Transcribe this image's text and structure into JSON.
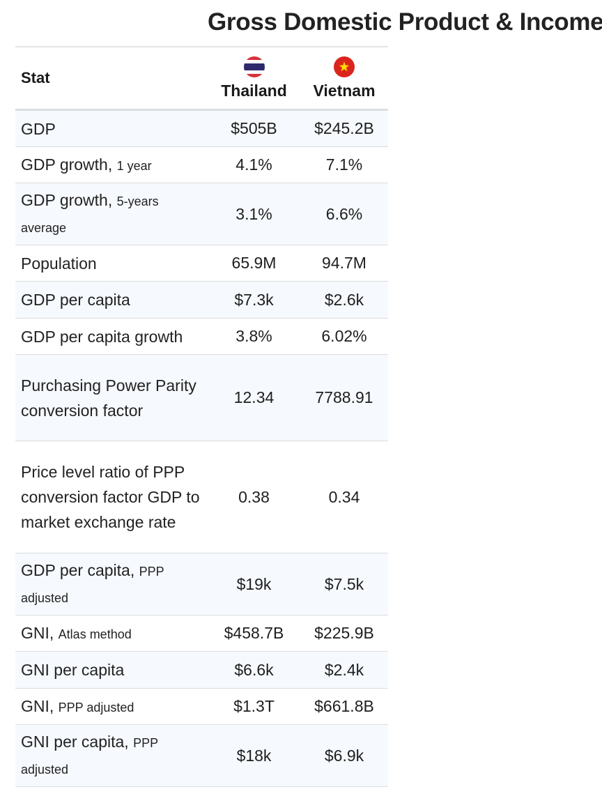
{
  "title": "Gross Domestic Product & Income",
  "table": {
    "header": {
      "stat_label": "Stat",
      "countries": [
        {
          "name": "Thailand",
          "flag_icon": "thailand-flag-icon"
        },
        {
          "name": "Vietnam",
          "flag_icon": "vietnam-flag-icon"
        }
      ]
    },
    "rows": [
      {
        "label": "GDP",
        "sub": "",
        "thailand": "$505B",
        "vietnam": "$245.2B"
      },
      {
        "label": "GDP growth,",
        "sub": "1 year",
        "thailand": "4.1%",
        "vietnam": "7.1%"
      },
      {
        "label": "GDP growth,",
        "sub": "5-years average",
        "thailand": "3.1%",
        "vietnam": "6.6%"
      },
      {
        "label": "Population",
        "sub": "",
        "thailand": "65.9M",
        "vietnam": "94.7M"
      },
      {
        "label": "GDP per capita",
        "sub": "",
        "thailand": "$7.3k",
        "vietnam": "$2.6k"
      },
      {
        "label": "GDP per capita growth",
        "sub": "",
        "thailand": "3.8%",
        "vietnam": "6.02%"
      },
      {
        "label": "Purchasing Power Parity conversion factor",
        "sub": "",
        "thailand": "12.34",
        "vietnam": "7788.91"
      },
      {
        "label": "Price level ratio of PPP conversion factor GDP to market exchange rate",
        "sub": "",
        "thailand": "0.38",
        "vietnam": "0.34"
      },
      {
        "label": "GDP per capita,",
        "sub": "PPP adjusted",
        "thailand": "$19k",
        "vietnam": "$7.5k"
      },
      {
        "label": "GNI,",
        "sub": "Atlas method",
        "thailand": "$458.7B",
        "vietnam": "$225.9B"
      },
      {
        "label": "GNI per capita",
        "sub": "",
        "thailand": "$6.6k",
        "vietnam": "$2.4k"
      },
      {
        "label": "GNI,",
        "sub": "PPP adjusted",
        "thailand": "$1.3T",
        "vietnam": "$661.8B"
      },
      {
        "label": "GNI per capita,",
        "sub": "PPP adjusted",
        "thailand": "$18k",
        "vietnam": "$6.9k"
      }
    ]
  },
  "colors": {
    "thailand_red": "#d8313a",
    "thailand_blue": "#2d2a6b",
    "vietnam_red": "#da251d",
    "vietnam_star": "#ffdd00",
    "row_tint": "#f6f9fd"
  }
}
